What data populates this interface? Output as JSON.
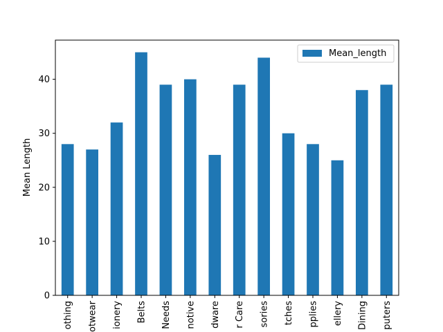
{
  "chart_data": {
    "type": "bar",
    "title": "",
    "xlabel": "",
    "ylabel": "Mean Length",
    "categories": [
      "othing",
      "otwear",
      "ionery",
      "Belts",
      "Needs",
      "notive",
      "dware",
      "r Care",
      "sories",
      "tches",
      "pplies",
      "ellery",
      "Dining",
      "puters"
    ],
    "series": [
      {
        "name": "Mean_length",
        "values": [
          28,
          27,
          32,
          45,
          39,
          40,
          26,
          39,
          44,
          30,
          28,
          25,
          38,
          39
        ],
        "color": "#1f77b4"
      }
    ],
    "yticks": [
      0,
      10,
      20,
      30,
      40
    ],
    "ylim": [
      0,
      47.25
    ],
    "grid": false,
    "legend_position": "top-right"
  }
}
